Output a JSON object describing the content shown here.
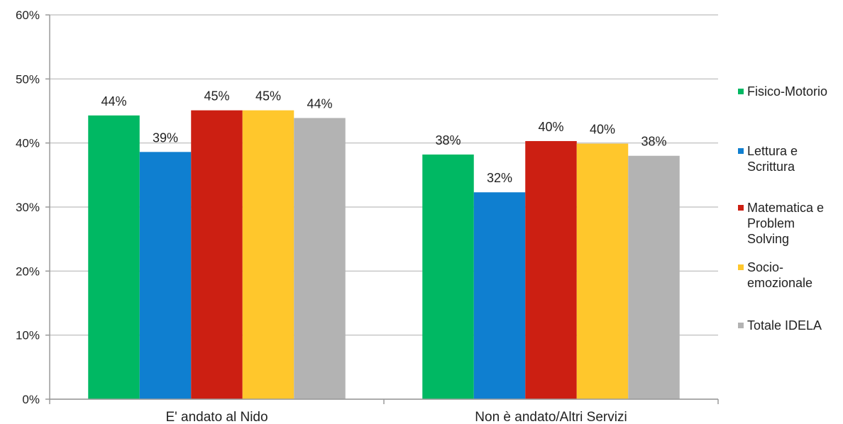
{
  "chart_data": {
    "type": "bar",
    "categories": [
      "E' andato al Nido",
      "Non è andato/Altri Servizi"
    ],
    "series": [
      {
        "name": "Fisico-Motorio",
        "color": "#00b863",
        "values": [
          44,
          38
        ],
        "labels": [
          "44%",
          "38%"
        ]
      },
      {
        "name": "Lettura e Scrittura",
        "color": "#0f7fd0",
        "values": [
          39,
          32
        ],
        "labels": [
          "39%",
          "32%"
        ]
      },
      {
        "name": "Matematica e Problem Solving",
        "color": "#cc1f12",
        "values": [
          45,
          40
        ],
        "labels": [
          "45%",
          "40%"
        ]
      },
      {
        "name": "Socio-emozionale",
        "color": "#ffc72c",
        "values": [
          45,
          40
        ],
        "labels": [
          "45%",
          "40%"
        ]
      },
      {
        "name": "Totale IDELA",
        "color": "#b3b3b3",
        "values": [
          44,
          38
        ],
        "labels": [
          "44%",
          "38%"
        ]
      }
    ],
    "bar_values_plotted": [
      [
        44.3,
        38.2
      ],
      [
        38.6,
        32.3
      ],
      [
        45.1,
        40.3
      ],
      [
        45.1,
        39.9
      ],
      [
        43.9,
        38.0
      ]
    ],
    "yticks": [
      "0%",
      "10%",
      "20%",
      "30%",
      "40%",
      "50%",
      "60%"
    ],
    "ylim": [
      0,
      60
    ],
    "grid": true,
    "legend_position": "right",
    "title": "",
    "xlabel": "",
    "ylabel": ""
  }
}
